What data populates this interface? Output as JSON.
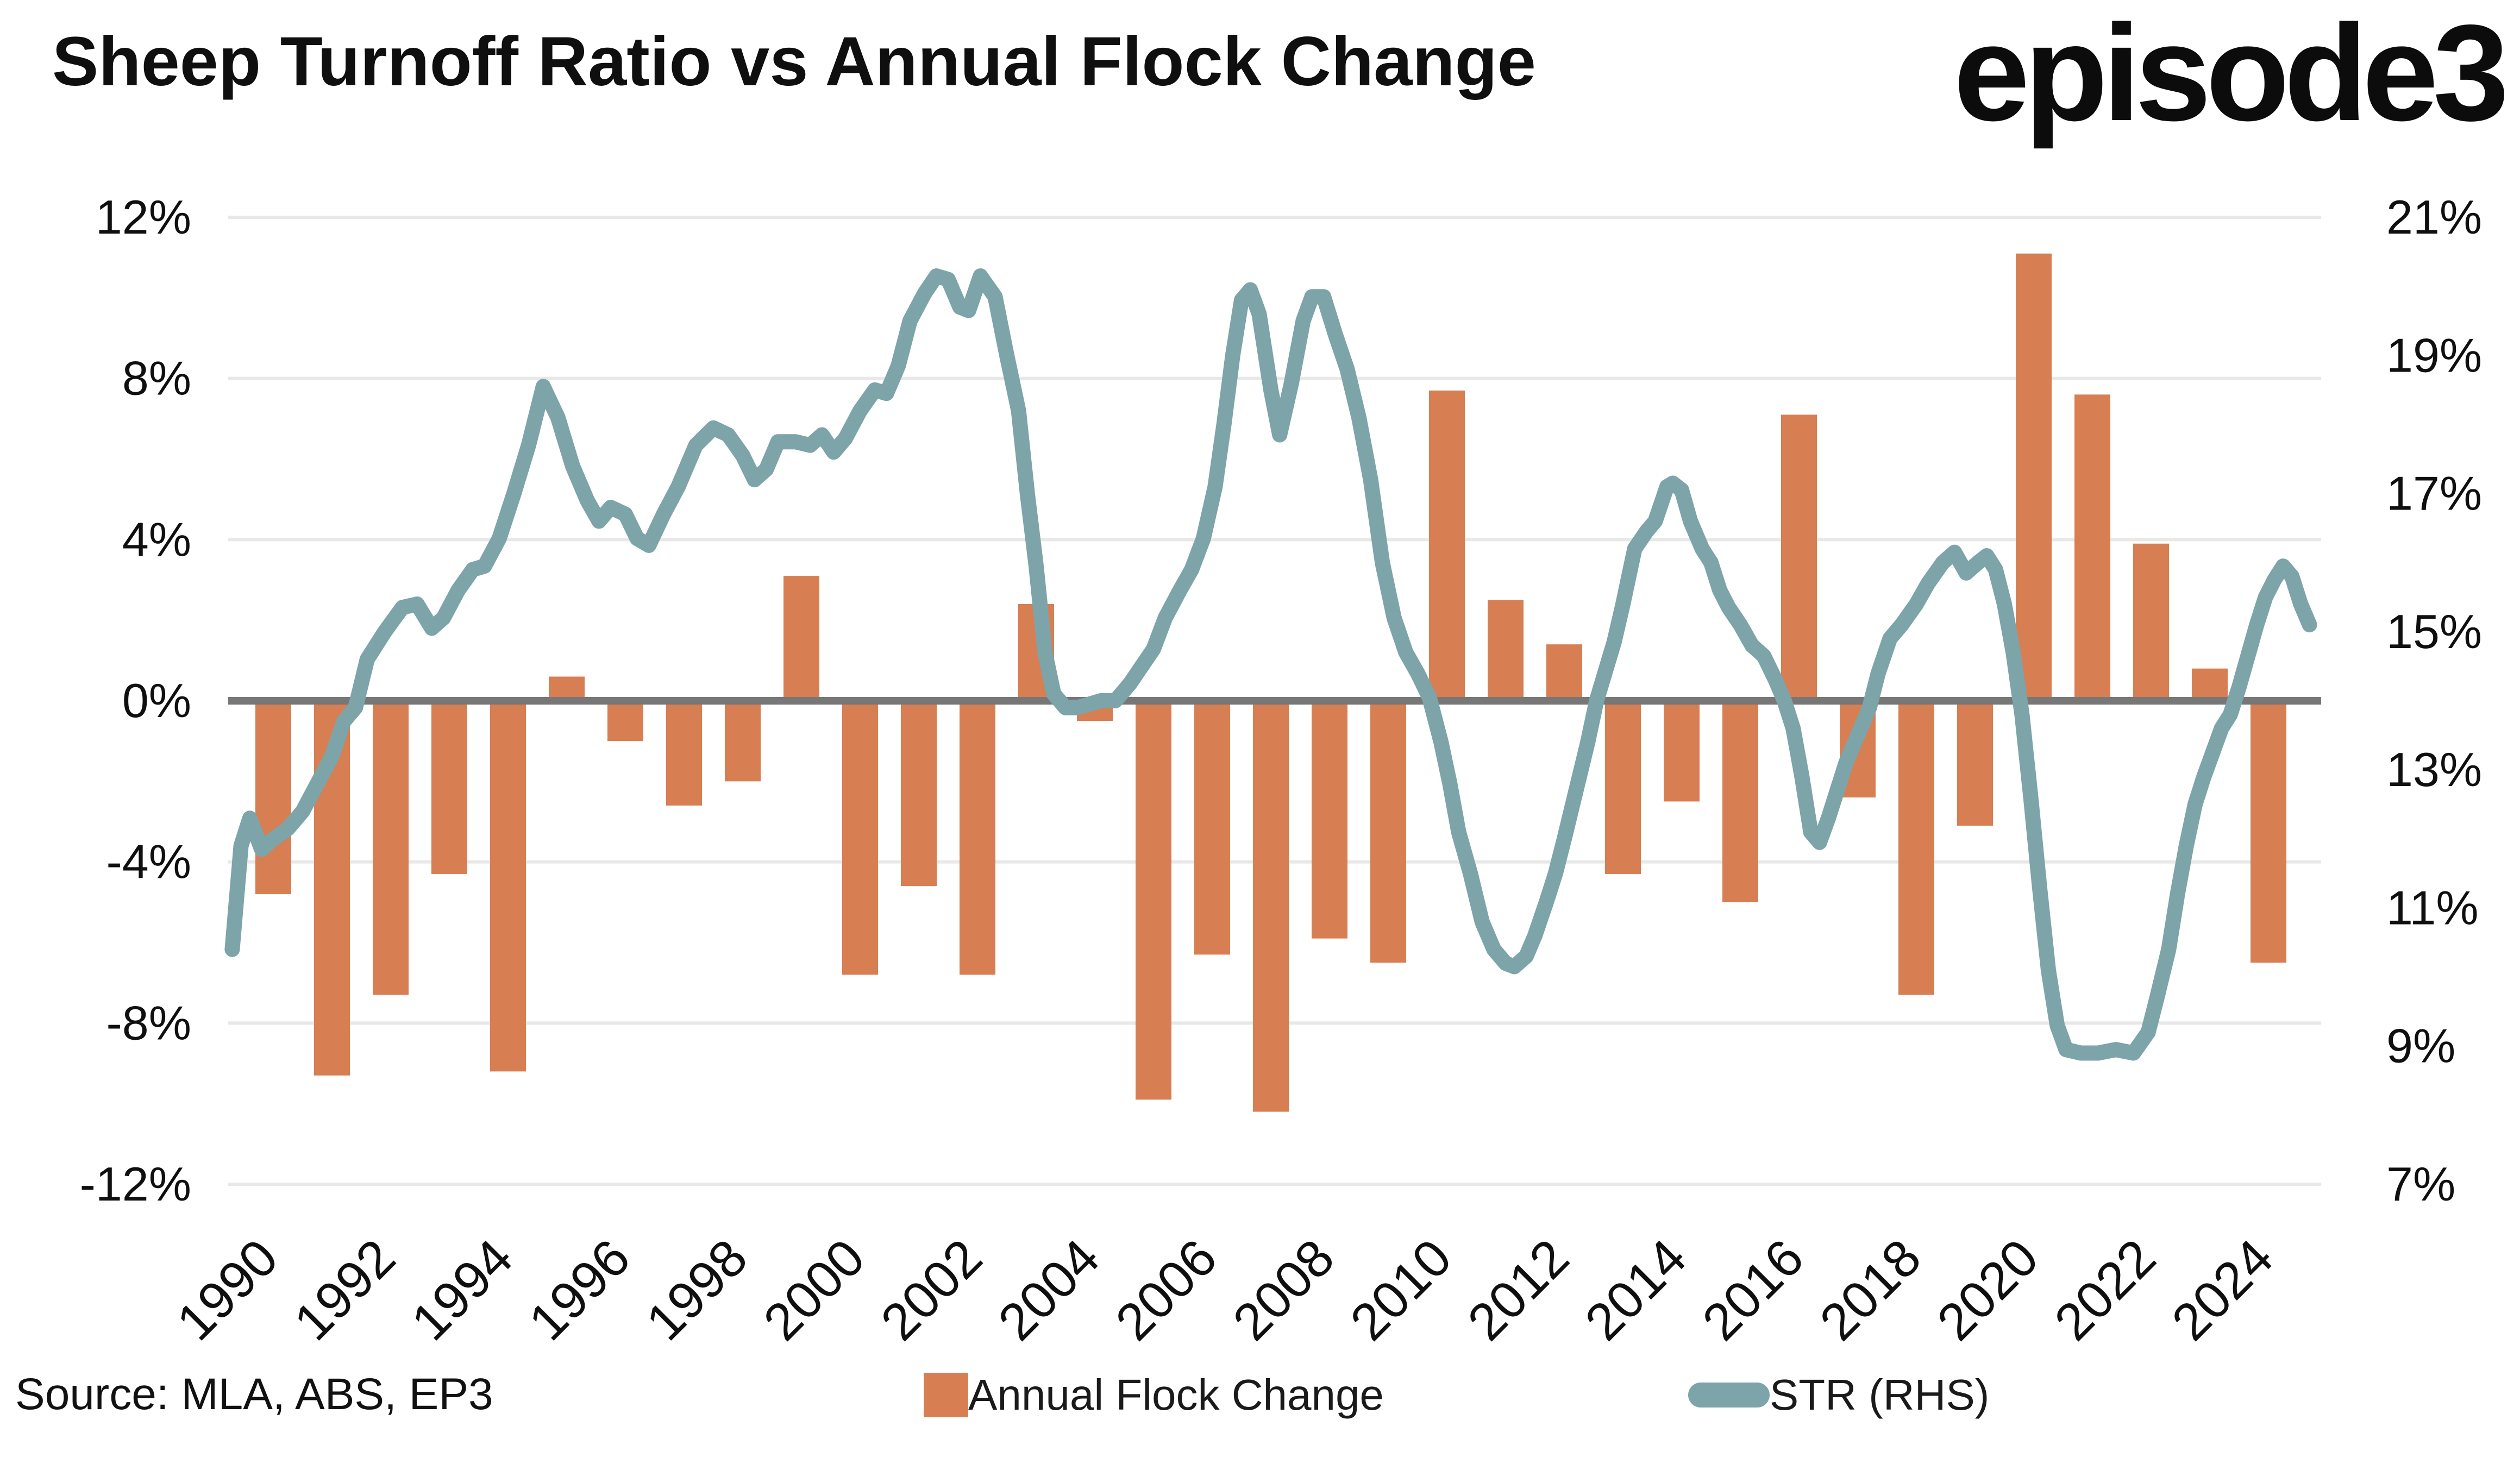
{
  "header": {
    "title": "Sheep Turnoff Ratio vs Annual Flock Change",
    "logo_text": "episode3"
  },
  "source_note": "Source: MLA, ABS, EP3",
  "legend": {
    "bars_label": "Annual Flock Change",
    "line_label": "STR (RHS)"
  },
  "colors": {
    "bar": "#D77E53",
    "line": "#7DA4A8",
    "zero_line": "#777777",
    "gridline": "#E8E8E8",
    "text": "#0f0f0f"
  },
  "chart_data": {
    "type": "bar+line",
    "title": "Sheep Turnoff Ratio vs Annual Flock Change",
    "grid": "horizontal-on",
    "legend_position": "bottom",
    "left_axis": {
      "label": "Annual Flock Change",
      "tick_labels": [
        "12%",
        "8%",
        "4%",
        "0%",
        "-4%",
        "-8%",
        "-12%"
      ],
      "tick_values": [
        12,
        8,
        4,
        0,
        -4,
        -8,
        -12
      ],
      "range": [
        -12,
        12
      ]
    },
    "right_axis": {
      "label": "STR (RHS)",
      "tick_labels": [
        "21%",
        "19%",
        "17%",
        "15%",
        "13%",
        "11%",
        "9%",
        "7%"
      ],
      "tick_values": [
        21,
        19,
        17,
        15,
        13,
        11,
        9,
        7
      ],
      "range": [
        7,
        21
      ],
      "alignment_note": "left 0% aligns with right 14%; left span 24 maps to right span 14"
    },
    "x_axis": {
      "tick_years": [
        1990,
        1992,
        1994,
        1996,
        1998,
        2000,
        2002,
        2004,
        2006,
        2008,
        2010,
        2012,
        2014,
        2016,
        2018,
        2020,
        2022,
        2024
      ],
      "range": [
        1989.1,
        2025.0
      ]
    },
    "bar_series": {
      "name": "Annual Flock Change",
      "axis": "left",
      "years": [
        1990,
        1991,
        1992,
        1993,
        1994,
        1995,
        1996,
        1997,
        1998,
        1999,
        2000,
        2001,
        2002,
        2003,
        2004,
        2005,
        2006,
        2007,
        2008,
        2009,
        2010,
        2011,
        2012,
        2013,
        2014,
        2015,
        2016,
        2017,
        2018,
        2019,
        2020,
        2021,
        2022,
        2023,
        2024
      ],
      "values": [
        -4.8,
        -9.3,
        -7.3,
        -4.3,
        -9.2,
        0.6,
        -1.0,
        -2.6,
        -2.0,
        3.1,
        -6.8,
        -4.6,
        -6.8,
        2.4,
        -0.5,
        -9.9,
        -6.3,
        -10.2,
        -5.9,
        -6.5,
        7.7,
        2.5,
        1.4,
        -4.3,
        -2.5,
        -5.0,
        7.1,
        -2.4,
        -7.3,
        -3.1,
        11.1,
        7.6,
        3.9,
        0.8,
        -6.5
      ]
    },
    "line_series": {
      "name": "STR (RHS)",
      "axis": "right",
      "points": [
        [
          1989.3,
          10.4
        ],
        [
          1989.45,
          11.9
        ],
        [
          1989.6,
          12.3
        ],
        [
          1989.8,
          11.85
        ],
        [
          1990.0,
          12.0
        ],
        [
          1990.25,
          12.15
        ],
        [
          1990.5,
          12.4
        ],
        [
          1990.75,
          12.8
        ],
        [
          1991.0,
          13.2
        ],
        [
          1991.2,
          13.7
        ],
        [
          1991.4,
          13.9
        ],
        [
          1991.6,
          14.6
        ],
        [
          1991.9,
          15.0
        ],
        [
          1992.2,
          15.35
        ],
        [
          1992.45,
          15.4
        ],
        [
          1992.7,
          15.05
        ],
        [
          1992.9,
          15.2
        ],
        [
          1993.15,
          15.6
        ],
        [
          1993.4,
          15.9
        ],
        [
          1993.6,
          15.95
        ],
        [
          1993.85,
          16.35
        ],
        [
          1994.1,
          17.0
        ],
        [
          1994.35,
          17.7
        ],
        [
          1994.6,
          18.55
        ],
        [
          1994.85,
          18.1
        ],
        [
          1995.1,
          17.4
        ],
        [
          1995.35,
          16.9
        ],
        [
          1995.55,
          16.6
        ],
        [
          1995.75,
          16.8
        ],
        [
          1996.0,
          16.7
        ],
        [
          1996.2,
          16.35
        ],
        [
          1996.4,
          16.25
        ],
        [
          1996.65,
          16.7
        ],
        [
          1996.9,
          17.1
        ],
        [
          1997.2,
          17.7
        ],
        [
          1997.5,
          17.95
        ],
        [
          1997.75,
          17.85
        ],
        [
          1998.0,
          17.55
        ],
        [
          1998.2,
          17.2
        ],
        [
          1998.4,
          17.35
        ],
        [
          1998.6,
          17.75
        ],
        [
          1998.9,
          17.75
        ],
        [
          1999.15,
          17.7
        ],
        [
          1999.35,
          17.85
        ],
        [
          1999.55,
          17.6
        ],
        [
          1999.75,
          17.8
        ],
        [
          2000.0,
          18.2
        ],
        [
          2000.25,
          18.5
        ],
        [
          2000.45,
          18.45
        ],
        [
          2000.65,
          18.85
        ],
        [
          2000.85,
          19.5
        ],
        [
          2001.1,
          19.9
        ],
        [
          2001.3,
          20.15
        ],
        [
          2001.5,
          20.1
        ],
        [
          2001.7,
          19.7
        ],
        [
          2001.85,
          19.65
        ],
        [
          2002.05,
          20.15
        ],
        [
          2002.3,
          19.85
        ],
        [
          2002.5,
          19.0
        ],
        [
          2002.7,
          18.2
        ],
        [
          2002.85,
          17.0
        ],
        [
          2003.0,
          15.95
        ],
        [
          2003.15,
          14.7
        ],
        [
          2003.3,
          14.1
        ],
        [
          2003.5,
          13.9
        ],
        [
          2003.7,
          13.9
        ],
        [
          2003.9,
          13.95
        ],
        [
          2004.1,
          14.0
        ],
        [
          2004.35,
          14.0
        ],
        [
          2004.6,
          14.25
        ],
        [
          2004.8,
          14.5
        ],
        [
          2005.0,
          14.75
        ],
        [
          2005.2,
          15.2
        ],
        [
          2005.45,
          15.6
        ],
        [
          2005.65,
          15.9
        ],
        [
          2005.85,
          16.35
        ],
        [
          2006.05,
          17.1
        ],
        [
          2006.2,
          18.0
        ],
        [
          2006.35,
          19.0
        ],
        [
          2006.5,
          19.8
        ],
        [
          2006.65,
          19.95
        ],
        [
          2006.8,
          19.6
        ],
        [
          2007.0,
          18.5
        ],
        [
          2007.15,
          17.85
        ],
        [
          2007.35,
          18.6
        ],
        [
          2007.55,
          19.5
        ],
        [
          2007.7,
          19.85
        ],
        [
          2007.9,
          19.85
        ],
        [
          2008.1,
          19.3
        ],
        [
          2008.3,
          18.8
        ],
        [
          2008.5,
          18.1
        ],
        [
          2008.7,
          17.2
        ],
        [
          2008.9,
          16.0
        ],
        [
          2009.1,
          15.2
        ],
        [
          2009.3,
          14.7
        ],
        [
          2009.5,
          14.4
        ],
        [
          2009.7,
          14.05
        ],
        [
          2009.9,
          13.4
        ],
        [
          2010.05,
          12.8
        ],
        [
          2010.2,
          12.1
        ],
        [
          2010.4,
          11.5
        ],
        [
          2010.6,
          10.8
        ],
        [
          2010.8,
          10.4
        ],
        [
          2011.0,
          10.2
        ],
        [
          2011.15,
          10.15
        ],
        [
          2011.35,
          10.3
        ],
        [
          2011.5,
          10.6
        ],
        [
          2011.7,
          11.1
        ],
        [
          2011.85,
          11.5
        ],
        [
          2012.0,
          12.0
        ],
        [
          2012.2,
          12.7
        ],
        [
          2012.4,
          13.4
        ],
        [
          2012.55,
          14.0
        ],
        [
          2012.85,
          14.85
        ],
        [
          2013.0,
          15.4
        ],
        [
          2013.2,
          16.2
        ],
        [
          2013.4,
          16.45
        ],
        [
          2013.55,
          16.6
        ],
        [
          2013.75,
          17.1
        ],
        [
          2013.85,
          17.15
        ],
        [
          2014.0,
          17.05
        ],
        [
          2014.15,
          16.6
        ],
        [
          2014.35,
          16.2
        ],
        [
          2014.5,
          16.0
        ],
        [
          2014.65,
          15.6
        ],
        [
          2014.8,
          15.35
        ],
        [
          2015.0,
          15.1
        ],
        [
          2015.2,
          14.8
        ],
        [
          2015.4,
          14.65
        ],
        [
          2015.6,
          14.3
        ],
        [
          2015.75,
          14.0
        ],
        [
          2015.9,
          13.6
        ],
        [
          2016.05,
          12.9
        ],
        [
          2016.2,
          12.1
        ],
        [
          2016.35,
          11.95
        ],
        [
          2016.5,
          12.3
        ],
        [
          2016.65,
          12.7
        ],
        [
          2016.8,
          13.1
        ],
        [
          2017.0,
          13.5
        ],
        [
          2017.2,
          13.9
        ],
        [
          2017.35,
          14.4
        ],
        [
          2017.55,
          14.9
        ],
        [
          2017.75,
          15.1
        ],
        [
          2018.0,
          15.4
        ],
        [
          2018.2,
          15.7
        ],
        [
          2018.45,
          16.0
        ],
        [
          2018.65,
          16.15
        ],
        [
          2018.85,
          15.85
        ],
        [
          2019.05,
          16.0
        ],
        [
          2019.2,
          16.1
        ],
        [
          2019.35,
          15.9
        ],
        [
          2019.5,
          15.4
        ],
        [
          2019.65,
          14.7
        ],
        [
          2019.8,
          13.8
        ],
        [
          2019.95,
          12.6
        ],
        [
          2020.1,
          11.3
        ],
        [
          2020.25,
          10.1
        ],
        [
          2020.4,
          9.3
        ],
        [
          2020.55,
          8.95
        ],
        [
          2020.8,
          8.9
        ],
        [
          2021.1,
          8.9
        ],
        [
          2021.4,
          8.95
        ],
        [
          2021.7,
          8.9
        ],
        [
          2021.95,
          9.2
        ],
        [
          2022.1,
          9.7
        ],
        [
          2022.3,
          10.4
        ],
        [
          2022.45,
          11.2
        ],
        [
          2022.6,
          11.9
        ],
        [
          2022.75,
          12.5
        ],
        [
          2022.9,
          12.9
        ],
        [
          2023.05,
          13.25
        ],
        [
          2023.2,
          13.6
        ],
        [
          2023.35,
          13.8
        ],
        [
          2023.5,
          14.2
        ],
        [
          2023.65,
          14.65
        ],
        [
          2023.8,
          15.1
        ],
        [
          2023.95,
          15.5
        ],
        [
          2024.1,
          15.75
        ],
        [
          2024.25,
          15.95
        ],
        [
          2024.4,
          15.8
        ],
        [
          2024.55,
          15.4
        ],
        [
          2024.7,
          15.1
        ]
      ]
    }
  }
}
